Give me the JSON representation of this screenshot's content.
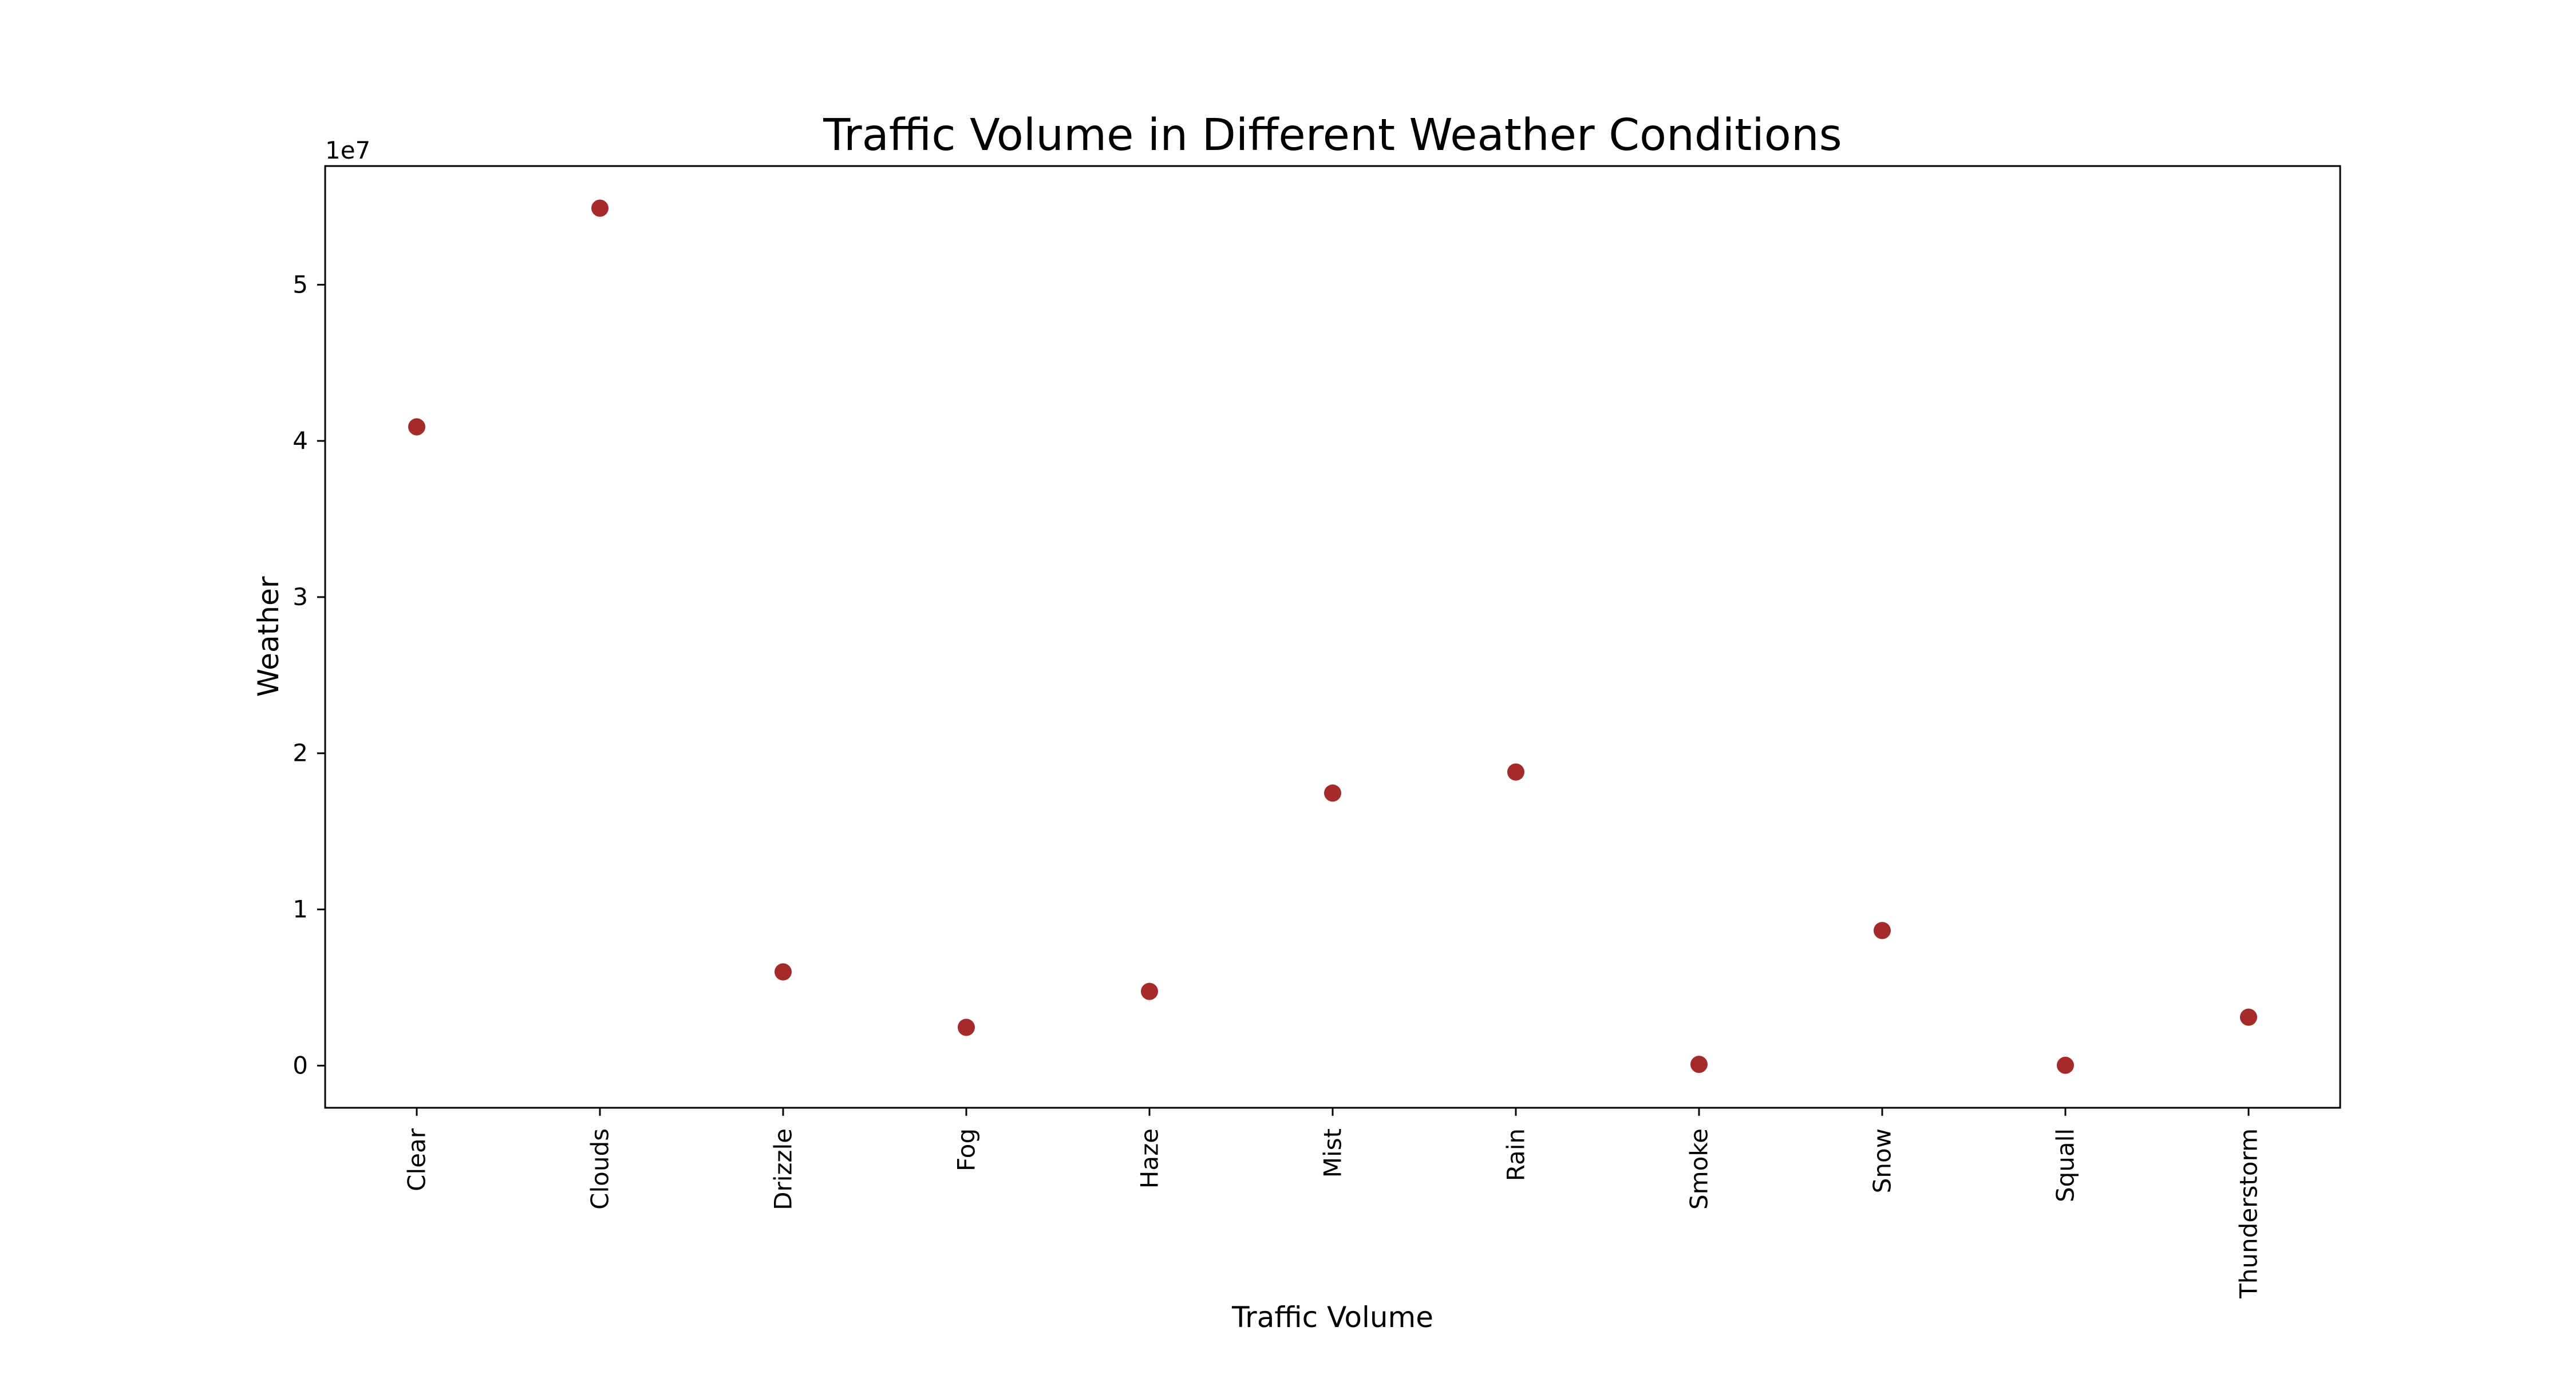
{
  "chart_data": {
    "type": "scatter",
    "title": "Traffic Volume in Different Weather Conditions",
    "xlabel": "Traffic Volume",
    "ylabel": "Weather",
    "categories": [
      "Clear",
      "Clouds",
      "Drizzle",
      "Fog",
      "Haze",
      "Mist",
      "Rain",
      "Smoke",
      "Snow",
      "Squall",
      "Thunderstorm"
    ],
    "values": [
      40900000,
      54900000,
      6000000,
      2450000,
      4750000,
      17450000,
      18800000,
      80000,
      8650000,
      20000,
      3100000
    ],
    "y_offset_label": "1e7",
    "y_ticks": [
      0,
      10000000,
      20000000,
      30000000,
      40000000,
      50000000
    ],
    "y_tick_labels": [
      "0",
      "1",
      "2",
      "3",
      "4",
      "5"
    ],
    "ylim": [
      -2700000,
      57600000
    ],
    "grid": false,
    "legend": false,
    "marker_color": "#a52a2a"
  }
}
